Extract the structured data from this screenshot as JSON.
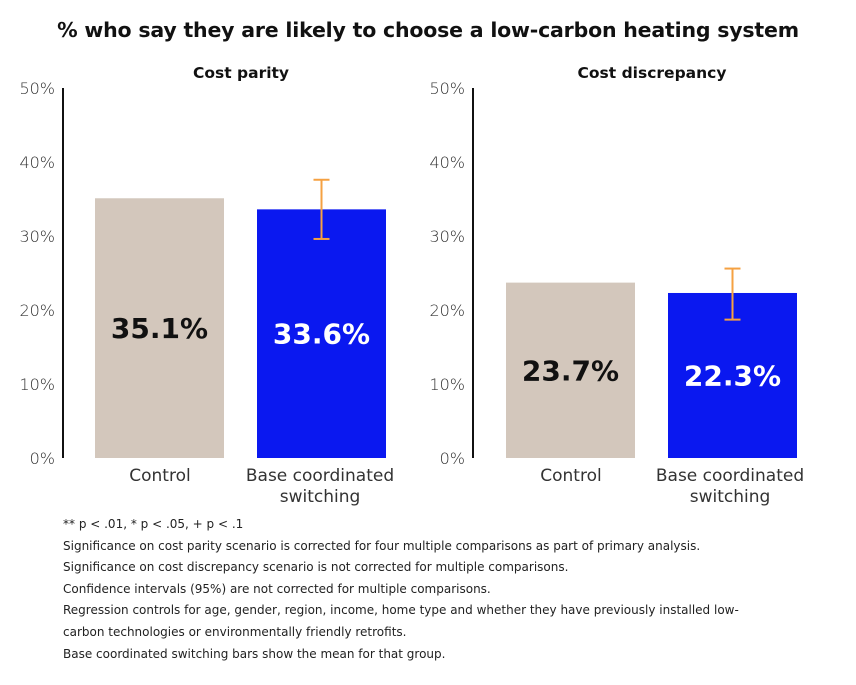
{
  "title": "% who say they are likely to choose a low-carbon heating system",
  "chart_data": [
    {
      "type": "bar",
      "title": "Cost parity",
      "categories": [
        "Control",
        "Base coordinated\nswitching"
      ],
      "values": [
        35.1,
        33.6
      ],
      "value_labels": [
        "35.1%",
        "33.6%"
      ],
      "bar_colors": [
        "#d3c7bc",
        "#0a18f0"
      ],
      "label_colors": [
        "#111111",
        "#ffffff"
      ],
      "error_bars": [
        null,
        {
          "low": 29.6,
          "high": 37.6
        }
      ],
      "ylim": [
        0,
        50
      ],
      "yticks": [
        0,
        10,
        20,
        30,
        40,
        50
      ],
      "ytick_labels": [
        "0%",
        "10%",
        "20%",
        "30%",
        "40%",
        "50%"
      ],
      "xlabel": "",
      "ylabel": "",
      "grid": false
    },
    {
      "type": "bar",
      "title": "Cost discrepancy",
      "categories": [
        "Control",
        "Base coordinated\nswitching"
      ],
      "values": [
        23.7,
        22.3
      ],
      "value_labels": [
        "23.7%",
        "22.3%"
      ],
      "bar_colors": [
        "#d3c7bc",
        "#0a18f0"
      ],
      "label_colors": [
        "#111111",
        "#ffffff"
      ],
      "error_bars": [
        null,
        {
          "low": 18.7,
          "high": 25.6
        }
      ],
      "ylim": [
        0,
        50
      ],
      "yticks": [
        0,
        10,
        20,
        30,
        40,
        50
      ],
      "ytick_labels": [
        "0%",
        "10%",
        "20%",
        "30%",
        "40%",
        "50%"
      ],
      "xlabel": "",
      "ylabel": "",
      "grid": false
    }
  ],
  "error_bar_color": "#f5a142",
  "notes": [
    "** p < .01, * p < .05, + p < .1",
    "Significance on cost parity scenario is corrected for four multiple comparisons as part of primary analysis.",
    "Significance on cost discrepancy scenario is not corrected for multiple comparisons.",
    "Confidence intervals (95%) are not corrected for multiple comparisons.",
    "Regression controls for age, gender, region, income, home type and whether they have previously installed low-",
    "carbon technologies or environmentally friendly retrofits.",
    "Base coordinated switching bars show the mean for that group."
  ]
}
